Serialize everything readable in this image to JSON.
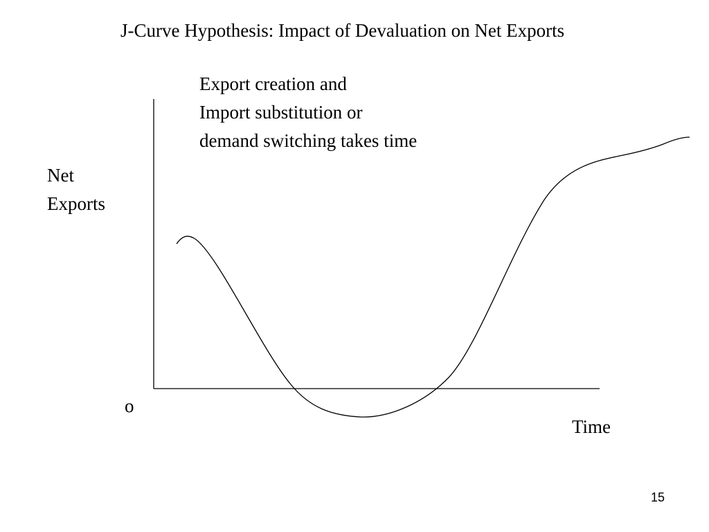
{
  "slide": {
    "title": "J-Curve Hypothesis: Impact of Devaluation on Net Exports",
    "annotation_lines": [
      "Export creation and",
      "Import substitution or",
      "demand switching takes time"
    ],
    "y_axis_label_lines": [
      "Net",
      "Exports"
    ],
    "origin_label": "o",
    "x_axis_label": "Time",
    "page_number": "15"
  },
  "colors": {
    "background": "#ffffff",
    "ink": "#000000"
  }
}
